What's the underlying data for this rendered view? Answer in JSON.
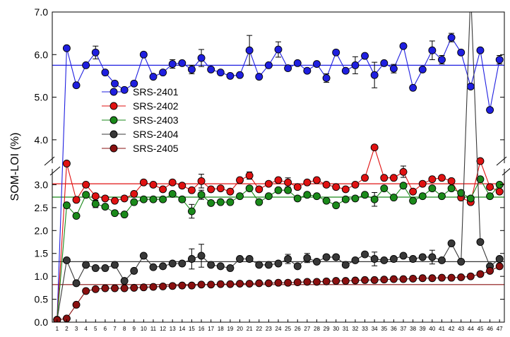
{
  "chart_data": {
    "type": "line",
    "title": "",
    "xlabel": "",
    "ylabel": "SOM-LOI (%)",
    "x": [
      1,
      2,
      3,
      4,
      5,
      6,
      7,
      8,
      9,
      10,
      11,
      12,
      13,
      14,
      15,
      16,
      17,
      18,
      19,
      20,
      21,
      22,
      23,
      24,
      25,
      26,
      27,
      28,
      29,
      30,
      31,
      32,
      33,
      34,
      35,
      36,
      37,
      38,
      39,
      40,
      41,
      42,
      43,
      44,
      45,
      46,
      47
    ],
    "xlim": [
      0.5,
      47.5
    ],
    "axis_break": {
      "lower_range": [
        0.0,
        3.3
      ],
      "upper_range": [
        3.5,
        7.0
      ]
    },
    "yticks_lower": [
      "0.0",
      "0.5",
      "1.0",
      "1.5",
      "2.0",
      "2.5",
      "3.0"
    ],
    "yticks_upper": [
      "4.0",
      "5.0",
      "6.0",
      "7.0"
    ],
    "legend_position": "center-left",
    "grid": false,
    "series": [
      {
        "name": "SRS-2401",
        "color": "#1f1fe0",
        "ref_line": 5.75,
        "values": [
          0.05,
          6.15,
          5.28,
          5.75,
          6.05,
          5.58,
          5.32,
          5.17,
          5.32,
          6.0,
          5.48,
          5.58,
          5.78,
          5.8,
          5.65,
          5.92,
          5.65,
          5.58,
          5.5,
          5.52,
          6.1,
          5.48,
          5.75,
          6.12,
          5.68,
          5.8,
          5.62,
          5.78,
          5.45,
          6.05,
          5.62,
          5.75,
          5.97,
          5.52,
          5.8,
          5.67,
          6.2,
          5.22,
          5.65,
          6.1,
          5.88,
          6.4,
          6.05,
          5.25,
          6.1,
          4.7,
          5.88
        ],
        "errors": [
          0,
          0.05,
          0.05,
          0.05,
          0.15,
          0.05,
          0.05,
          0.05,
          0.05,
          0.05,
          0.05,
          0.05,
          0.1,
          0.05,
          0.1,
          0.2,
          0.05,
          0.05,
          0.05,
          0.05,
          0.35,
          0.05,
          0.05,
          0.18,
          0.05,
          0.05,
          0.05,
          0.05,
          0.1,
          0.05,
          0.05,
          0.2,
          0.05,
          0.3,
          0.05,
          0.1,
          0.05,
          0.05,
          0.05,
          0.22,
          0.1,
          0.1,
          0.05,
          0.05,
          0.05,
          0.05,
          0.1
        ]
      },
      {
        "name": "SRS-2402",
        "color": "#e01212",
        "ref_line": 3.02,
        "values": [
          0.05,
          3.45,
          2.67,
          3.0,
          2.75,
          2.7,
          2.65,
          2.7,
          2.8,
          3.05,
          3.0,
          2.9,
          3.05,
          2.98,
          2.88,
          3.08,
          2.9,
          2.92,
          2.85,
          3.1,
          3.2,
          2.9,
          3.02,
          3.1,
          3.05,
          2.95,
          3.05,
          3.1,
          3.0,
          2.95,
          2.9,
          3.0,
          3.15,
          3.82,
          3.15,
          3.15,
          3.28,
          2.85,
          3.02,
          3.12,
          3.15,
          3.08,
          2.72,
          2.62,
          3.5,
          2.95,
          2.85
        ],
        "errors": [
          0,
          0,
          0.05,
          0.05,
          0.05,
          0.05,
          0.05,
          0.05,
          0.05,
          0.05,
          0.05,
          0.05,
          0.05,
          0.05,
          0.05,
          0.15,
          0.05,
          0.05,
          0.05,
          0.05,
          0.08,
          0.05,
          0.05,
          0.05,
          0.1,
          0.05,
          0.05,
          0.05,
          0.05,
          0.05,
          0.05,
          0.05,
          0.05,
          0,
          0.05,
          0.05,
          0.12,
          0.05,
          0.05,
          0.05,
          0.05,
          0.05,
          0.05,
          0.05,
          0,
          0.05,
          0.05
        ]
      },
      {
        "name": "SRS-2403",
        "color": "#1a8a1a",
        "ref_line": 2.73,
        "values": [
          0.05,
          2.55,
          2.32,
          2.78,
          2.58,
          2.52,
          2.38,
          2.35,
          2.62,
          2.68,
          2.68,
          2.68,
          2.8,
          2.68,
          2.42,
          2.78,
          2.6,
          2.62,
          2.62,
          2.75,
          2.92,
          2.62,
          2.75,
          2.88,
          2.88,
          2.7,
          2.78,
          2.75,
          2.65,
          2.55,
          2.68,
          2.7,
          2.78,
          2.68,
          2.92,
          2.72,
          2.98,
          2.65,
          2.75,
          2.92,
          2.75,
          2.92,
          2.82,
          2.7,
          3.12,
          2.75,
          3.0
        ],
        "errors": [
          0,
          0,
          0.05,
          0.05,
          0.08,
          0.05,
          0.05,
          0.05,
          0.05,
          0.05,
          0.05,
          0.05,
          0.05,
          0.05,
          0.15,
          0.1,
          0.05,
          0.05,
          0.05,
          0.05,
          0.05,
          0.05,
          0.05,
          0.05,
          0.05,
          0.05,
          0.05,
          0.05,
          0.05,
          0.05,
          0.05,
          0.05,
          0.05,
          0.15,
          0.05,
          0.05,
          0.05,
          0.05,
          0.05,
          0.05,
          0.05,
          0.05,
          0.05,
          0.05,
          0.05,
          0.05,
          0.05
        ]
      },
      {
        "name": "SRS-2404",
        "color": "#383838",
        "ref_line": 1.32,
        "values": [
          0.05,
          1.35,
          0.85,
          1.25,
          1.18,
          1.18,
          1.25,
          0.9,
          1.12,
          1.45,
          1.2,
          1.22,
          1.28,
          1.28,
          1.38,
          1.45,
          1.25,
          1.22,
          1.18,
          1.38,
          1.38,
          1.25,
          1.25,
          1.28,
          1.38,
          1.22,
          1.4,
          1.32,
          1.42,
          1.42,
          1.25,
          1.35,
          1.48,
          1.38,
          1.35,
          1.38,
          1.45,
          1.38,
          1.42,
          1.42,
          1.35,
          1.72,
          1.32,
          7.5,
          1.75,
          1.22,
          1.38
        ],
        "errors": [
          0,
          0,
          0.05,
          0.05,
          0.05,
          0.05,
          0.05,
          0.05,
          0.05,
          0.05,
          0.05,
          0.05,
          0.05,
          0.05,
          0.22,
          0.25,
          0.05,
          0.05,
          0.05,
          0.05,
          0.05,
          0.05,
          0.05,
          0.05,
          0.1,
          0.05,
          0.1,
          0.05,
          0.05,
          0.05,
          0.05,
          0.05,
          0.05,
          0.15,
          0.05,
          0.05,
          0.05,
          0.05,
          0.05,
          0.15,
          0.05,
          0.05,
          0.05,
          0,
          0.05,
          0.05,
          0.05
        ]
      },
      {
        "name": "SRS-2405",
        "color": "#8a1010",
        "ref_line": 0.82,
        "values": [
          0.05,
          0.08,
          0.38,
          0.68,
          0.72,
          0.74,
          0.74,
          0.74,
          0.75,
          0.76,
          0.77,
          0.78,
          0.79,
          0.8,
          0.8,
          0.82,
          0.82,
          0.83,
          0.83,
          0.84,
          0.84,
          0.85,
          0.85,
          0.86,
          0.86,
          0.87,
          0.88,
          0.88,
          0.89,
          0.9,
          0.9,
          0.91,
          0.92,
          0.92,
          0.93,
          0.94,
          0.94,
          0.95,
          0.96,
          0.96,
          0.97,
          0.97,
          0.98,
          1.0,
          1.05,
          1.12,
          1.22
        ],
        "errors": [
          0,
          0,
          0,
          0,
          0,
          0,
          0,
          0,
          0,
          0,
          0,
          0,
          0,
          0,
          0,
          0,
          0,
          0,
          0,
          0,
          0,
          0,
          0,
          0,
          0,
          0,
          0,
          0,
          0,
          0,
          0,
          0,
          0,
          0,
          0,
          0,
          0,
          0,
          0,
          0,
          0,
          0,
          0,
          0,
          0,
          0,
          0.06
        ]
      }
    ]
  }
}
